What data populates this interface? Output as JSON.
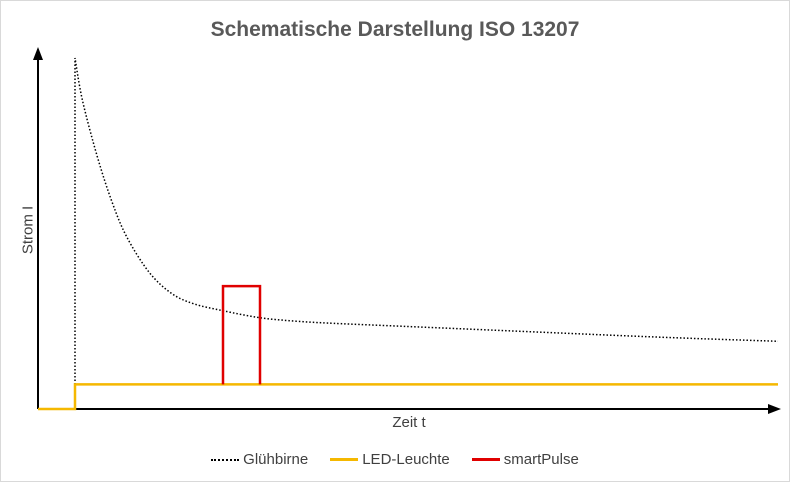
{
  "chart_data": {
    "type": "line",
    "title": "Schematische Darstellung ISO 13207",
    "xlabel": "Zeit t",
    "ylabel": "Strom I",
    "xlim": [
      0,
      100
    ],
    "ylim": [
      0,
      100
    ],
    "grid": false,
    "axis_ticks": false,
    "legend_position": "bottom",
    "series": [
      {
        "name": "Glühbirne",
        "color": "#000000",
        "style": "dotted",
        "x": [
          5,
          5,
          6,
          8,
          10,
          12,
          15,
          18,
          21,
          25,
          30,
          35,
          40,
          50,
          60,
          70,
          80,
          90,
          100
        ],
        "y": [
          0,
          100,
          88,
          72,
          59,
          49,
          39,
          33,
          30,
          28,
          26,
          25,
          24.4,
          23.5,
          22.6,
          21.7,
          20.8,
          20,
          19.3
        ]
      },
      {
        "name": "LED-Leuchte",
        "color": "#F5B800",
        "style": "solid",
        "x": [
          0,
          5,
          5,
          100
        ],
        "y": [
          0,
          0,
          7,
          7
        ]
      },
      {
        "name": "smartPulse",
        "color": "#E00000",
        "style": "solid",
        "x": [
          25,
          25,
          30,
          30
        ],
        "y": [
          7,
          35,
          35,
          7
        ]
      }
    ]
  }
}
